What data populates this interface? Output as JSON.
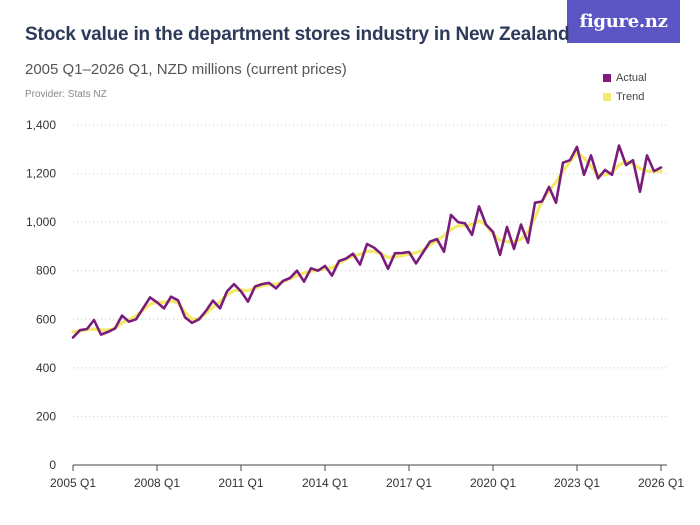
{
  "brand": {
    "logo_text": "figure.nz"
  },
  "chart_data": {
    "type": "line",
    "title": "Stock value in the department stores industry in New Zealand",
    "subtitle": "2005 Q1–2026 Q1, NZD millions (current prices)",
    "provider": "Provider: Stats NZ",
    "xlabel": "",
    "ylabel": "",
    "ylim": [
      0,
      1400
    ],
    "y_ticks": [
      "0",
      "200",
      "400",
      "600",
      "800",
      "1,000",
      "1,200",
      "1,400"
    ],
    "x_ticks": [
      "2005 Q1",
      "2008 Q1",
      "2011 Q1",
      "2014 Q1",
      "2017 Q1",
      "2020 Q1",
      "2023 Q1",
      "2026 Q1"
    ],
    "grid": true,
    "legend_position": "top-right",
    "colors": {
      "Actual": "#7b1c7c",
      "Trend": "#f2ea6b"
    },
    "series": [
      {
        "name": "Actual",
        "values": [
          525,
          555,
          560,
          597,
          537,
          548,
          562,
          615,
          590,
          600,
          645,
          690,
          670,
          645,
          693,
          678,
          608,
          585,
          600,
          635,
          677,
          645,
          715,
          745,
          715,
          673,
          735,
          745,
          750,
          727,
          758,
          770,
          800,
          755,
          810,
          800,
          820,
          780,
          840,
          850,
          870,
          825,
          910,
          895,
          870,
          808,
          872,
          873,
          877,
          830,
          875,
          920,
          930,
          878,
          1030,
          1000,
          995,
          948,
          1065,
          990,
          960,
          865,
          980,
          890,
          990,
          915,
          1080,
          1085,
          1145,
          1080,
          1245,
          1255,
          1310,
          1195,
          1275,
          1180,
          1215,
          1195,
          1315,
          1235,
          1255,
          1125,
          1275,
          1210,
          1225
        ]
      },
      {
        "name": "Trend",
        "values": [
          548,
          553,
          557,
          560,
          556,
          556,
          563,
          585,
          598,
          613,
          638,
          662,
          670,
          670,
          675,
          668,
          630,
          600,
          603,
          625,
          650,
          673,
          700,
          718,
          720,
          718,
          728,
          738,
          743,
          745,
          755,
          768,
          780,
          790,
          798,
          803,
          808,
          812,
          830,
          848,
          860,
          868,
          880,
          880,
          870,
          855,
          858,
          862,
          868,
          874,
          885,
          905,
          925,
          945,
          970,
          985,
          985,
          990,
          1005,
          990,
          950,
          925,
          920,
          920,
          930,
          960,
          1020,
          1085,
          1130,
          1165,
          1210,
          1250,
          1285,
          1265,
          1230,
          1195,
          1195,
          1205,
          1235,
          1250,
          1240,
          1220,
          1210,
          1210,
          1210
        ]
      }
    ]
  }
}
